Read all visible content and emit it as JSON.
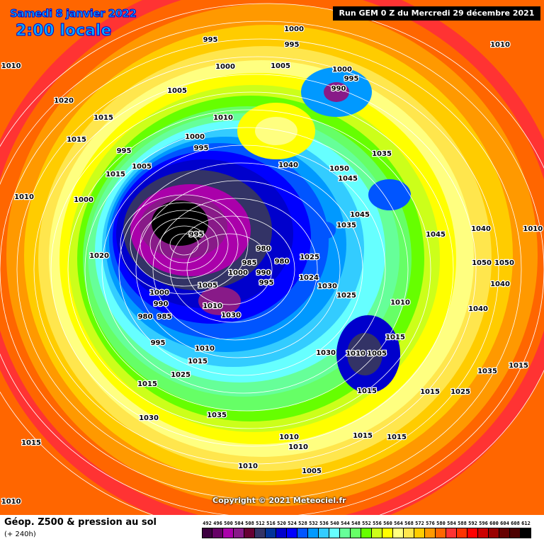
{
  "header": {
    "date": "Samedi 8 janvier 2022",
    "time": "2:00 locale",
    "run": "Run GEM 0 Z du Mercredi 29 décembre 2021"
  },
  "copyright": "Copyright © 2021 Meteociel.fr",
  "footer": {
    "title": "Géop. Z500 & pression au sol",
    "subtitle": "(+ 240h)"
  },
  "legend": {
    "values": [
      "492",
      "496",
      "500",
      "504",
      "508",
      "512",
      "516",
      "520",
      "524",
      "528",
      "532",
      "536",
      "540",
      "544",
      "548",
      "552",
      "556",
      "560",
      "564",
      "568",
      "572",
      "576",
      "580",
      "584",
      "588",
      "592",
      "596",
      "600",
      "604",
      "608",
      "612"
    ],
    "colors": [
      "#3d0040",
      "#660066",
      "#aa00aa",
      "#881a88",
      "#660033",
      "#333366",
      "#003399",
      "#0000cc",
      "#0000ff",
      "#0055ff",
      "#0099ff",
      "#33ccff",
      "#66ffff",
      "#66ff99",
      "#66ff66",
      "#66ff00",
      "#ccff1a",
      "#ffff00",
      "#ffff80",
      "#ffe64d",
      "#ffcc00",
      "#ff9900",
      "#ff6600",
      "#ff3333",
      "#ff3300",
      "#ff0000",
      "#cc0000",
      "#990000",
      "#660000",
      "#4d0000",
      "#000000"
    ]
  },
  "pressure_labels": [
    "1010",
    "995",
    "1000",
    "995",
    "1010",
    "1000",
    "1005",
    "1000",
    "990",
    "995",
    "1020",
    "1005",
    "1015",
    "1010",
    "1015",
    "1000",
    "995",
    "995",
    "1005",
    "1040",
    "1035",
    "1050",
    "1045",
    "1015",
    "1010",
    "1000",
    "1045",
    "1035",
    "1045",
    "1040",
    "1010",
    "1020",
    "995",
    "980",
    "985",
    "990",
    "995",
    "980",
    "1000",
    "1025",
    "1005",
    "1030",
    "1030",
    "1025",
    "1024",
    "1000",
    "990",
    "1010",
    "980",
    "985",
    "995",
    "1010",
    "1015",
    "1005",
    "1010",
    "1015",
    "1015",
    "1025",
    "1030",
    "1035",
    "1015",
    "1015",
    "1025",
    "1035",
    "1030",
    "1015",
    "1010",
    "1015",
    "1005",
    "1015",
    "1010",
    "1010",
    "1010",
    "1040",
    "1050",
    "1050",
    "1040",
    "1010",
    "1015"
  ]
}
